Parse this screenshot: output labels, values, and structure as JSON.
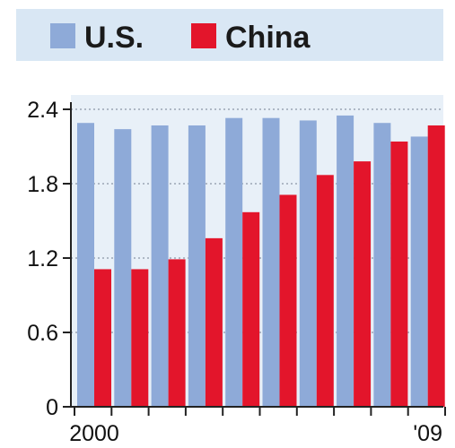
{
  "chart_data": {
    "type": "bar",
    "categories": [
      "2000",
      "2001",
      "2002",
      "2003",
      "2004",
      "2005",
      "2006",
      "2007",
      "2008",
      "2009"
    ],
    "x_tick_labels": [
      "2000",
      "",
      "",
      "",
      "",
      "",
      "",
      "",
      "",
      "'09"
    ],
    "series": [
      {
        "name": "U.S.",
        "color": "#8eaad8",
        "values": [
          2.29,
          2.24,
          2.27,
          2.27,
          2.33,
          2.33,
          2.31,
          2.35,
          2.29,
          2.18
        ]
      },
      {
        "name": "China",
        "color": "#e3152b",
        "values": [
          1.11,
          1.11,
          1.19,
          1.36,
          1.57,
          1.71,
          1.87,
          1.98,
          2.14,
          2.27
        ]
      }
    ],
    "y_ticks": [
      0,
      0.6,
      1.2,
      1.8,
      2.4
    ],
    "y_tick_labels": [
      "0",
      "0.6",
      "1.2",
      "1.8",
      "2.4"
    ],
    "ylim": [
      0,
      2.4
    ],
    "grid": "dotted horizontal",
    "legend_position": "top",
    "legend_background": "#d9e7f4",
    "plot_background": "#e8f0f8"
  }
}
